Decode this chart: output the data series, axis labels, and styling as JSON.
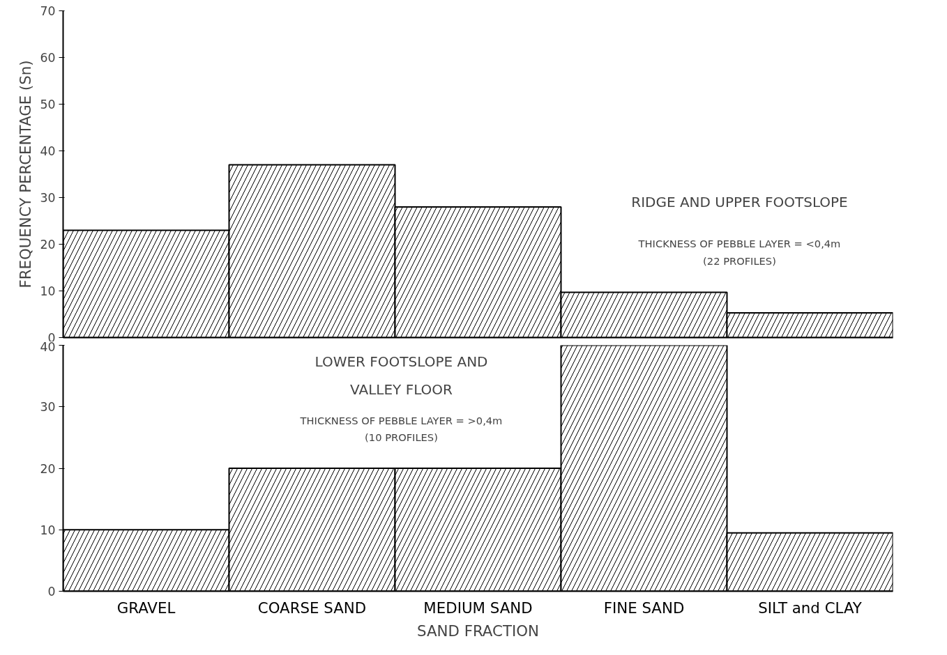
{
  "chart_data": [
    {
      "type": "bar",
      "ylabel": "FREQUENCY PERCENTAGE (Sn)",
      "categories": [
        null,
        null,
        null,
        null,
        null
      ],
      "series": [
        {
          "color": "#000000",
          "values": [
            23,
            37,
            28,
            9.7,
            5.3
          ]
        }
      ],
      "ylim": [
        0,
        70
      ],
      "yticks": [
        0,
        10,
        20,
        30,
        40,
        50,
        60,
        70
      ],
      "tick_labels": "y",
      "grid": false,
      "annotations": [
        "RIDGE AND UPPER FOOTSLOPE",
        "THICKNESS OF PEBBLE LAYER = <0,4m",
        "(22 PROFILES)"
      ]
    },
    {
      "type": "bar",
      "xlabel": "SAND FRACTION",
      "categories": [
        "GRAVEL",
        "COARSE SAND",
        "MEDIUM SAND",
        "FINE SAND",
        "SILT and CLAY"
      ],
      "series": [
        {
          "color": "#000000",
          "values": [
            10,
            20,
            20,
            40,
            9.5
          ]
        }
      ],
      "ylim": [
        0,
        40
      ],
      "yticks": [
        0,
        10,
        20,
        30,
        40
      ],
      "grid": false,
      "annotations": [
        "LOWER FOOTSLOPE AND",
        "VALLEY FLOOR",
        "THICKNESS OF PEBBLE LAYER = >0,4m",
        "(10 PROFILES)"
      ]
    }
  ]
}
